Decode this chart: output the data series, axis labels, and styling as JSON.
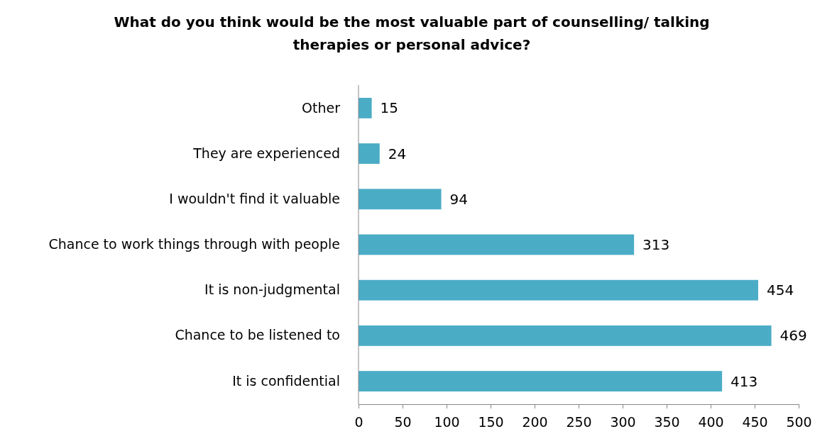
{
  "chart_data": {
    "type": "bar",
    "orientation": "horizontal",
    "title": "What do you think would be the most valuable part of counselling/ talking therapies or personal advice?",
    "categories": [
      "Other",
      "They are experienced",
      "I wouldn't find it valuable",
      "Chance to work things through with people",
      "It is non-judgmental",
      "Chance to be listened to",
      "It is confidential"
    ],
    "values": [
      15,
      24,
      94,
      313,
      454,
      469,
      413
    ],
    "color": "#4bacc6",
    "data_labels": true,
    "xlim": [
      0,
      500
    ],
    "xticks": [
      0,
      50,
      100,
      150,
      200,
      250,
      300,
      350,
      400,
      450,
      500
    ],
    "grid": false
  }
}
